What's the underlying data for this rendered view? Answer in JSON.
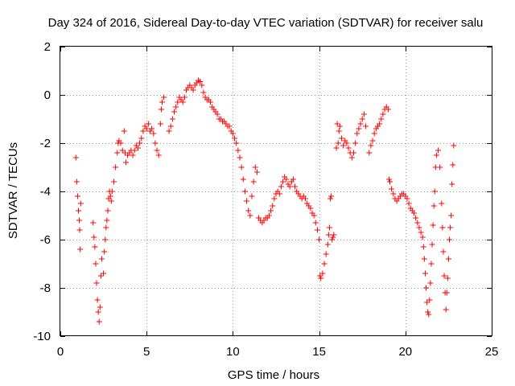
{
  "chart_data": {
    "type": "scatter",
    "title": "Day 324 of 2016, Sidereal Day-to-day VTEC variation (SDTVAR) for receiver salu",
    "xlabel": "GPS time / hours",
    "ylabel": "SDTVAR / TECUs",
    "xlim": [
      0,
      25
    ],
    "ylim": [
      -10,
      2
    ],
    "x_ticks": [
      0,
      5,
      10,
      15,
      20,
      25
    ],
    "y_ticks": [
      -10,
      -8,
      -6,
      -4,
      -2,
      0,
      2
    ],
    "x_tick_labels": [
      "0",
      "5",
      "10",
      "15",
      "20",
      "25"
    ],
    "y_tick_labels": [
      "-10",
      "-8",
      "-6",
      "-4",
      "-2",
      "0",
      "2"
    ],
    "grid": true,
    "marker": "+",
    "color": "#ff0000",
    "series": [
      {
        "name": "SDTVAR",
        "points": [
          [
            0.9,
            -2.6
          ],
          [
            0.95,
            -3.6
          ],
          [
            1.0,
            -4.2
          ],
          [
            1.05,
            -4.8
          ],
          [
            1.1,
            -5.2
          ],
          [
            1.12,
            -5.6
          ],
          [
            1.15,
            -6.4
          ],
          [
            1.18,
            -4.5
          ],
          [
            1.9,
            -5.3
          ],
          [
            1.95,
            -5.9
          ],
          [
            2.0,
            -6.3
          ],
          [
            2.05,
            -7.0
          ],
          [
            2.1,
            -7.8
          ],
          [
            2.15,
            -8.5
          ],
          [
            2.2,
            -9.0
          ],
          [
            2.25,
            -9.4
          ],
          [
            2.3,
            -8.8
          ],
          [
            2.35,
            -7.5
          ],
          [
            2.4,
            -6.8
          ],
          [
            2.5,
            -7.4
          ],
          [
            2.55,
            -6.5
          ],
          [
            2.6,
            -6.0
          ],
          [
            2.65,
            -5.5
          ],
          [
            2.7,
            -5.2
          ],
          [
            2.75,
            -4.8
          ],
          [
            2.8,
            -4.3
          ],
          [
            2.85,
            -4.0
          ],
          [
            2.9,
            -4.2
          ],
          [
            2.95,
            -4.4
          ],
          [
            3.0,
            -4.0
          ],
          [
            3.1,
            -3.6
          ],
          [
            3.2,
            -3.0
          ],
          [
            3.3,
            -2.4
          ],
          [
            3.35,
            -2.0
          ],
          [
            3.4,
            -1.9
          ],
          [
            3.5,
            -2.0
          ],
          [
            3.6,
            -2.3
          ],
          [
            3.7,
            -1.5
          ],
          [
            3.75,
            -2.4
          ],
          [
            3.8,
            -2.8
          ],
          [
            3.9,
            -2.5
          ],
          [
            4.0,
            -2.4
          ],
          [
            4.1,
            -2.3
          ],
          [
            4.2,
            -2.5
          ],
          [
            4.3,
            -2.3
          ],
          [
            4.4,
            -2.1
          ],
          [
            4.5,
            -2.2
          ],
          [
            4.6,
            -2.0
          ],
          [
            4.7,
            -1.8
          ],
          [
            4.8,
            -1.5
          ],
          [
            4.9,
            -1.3
          ],
          [
            5.0,
            -1.4
          ],
          [
            5.1,
            -1.2
          ],
          [
            5.2,
            -1.5
          ],
          [
            5.3,
            -1.4
          ],
          [
            5.4,
            -1.6
          ],
          [
            5.5,
            -2.0
          ],
          [
            5.6,
            -2.3
          ],
          [
            5.7,
            -2.5
          ],
          [
            5.8,
            -1.2
          ],
          [
            5.85,
            -0.6
          ],
          [
            5.9,
            -0.3
          ],
          [
            6.0,
            -0.1
          ],
          [
            6.3,
            -1.5
          ],
          [
            6.4,
            -1.3
          ],
          [
            6.5,
            -1.0
          ],
          [
            6.6,
            -0.7
          ],
          [
            6.7,
            -0.5
          ],
          [
            6.8,
            -0.3
          ],
          [
            6.9,
            -0.1
          ],
          [
            7.0,
            -0.2
          ],
          [
            7.1,
            -0.3
          ],
          [
            7.2,
            -0.1
          ],
          [
            7.3,
            0.2
          ],
          [
            7.4,
            0.3
          ],
          [
            7.5,
            0.4
          ],
          [
            7.6,
            0.3
          ],
          [
            7.7,
            0.2
          ],
          [
            7.8,
            0.4
          ],
          [
            7.9,
            0.5
          ],
          [
            8.0,
            0.6
          ],
          [
            8.1,
            0.55
          ],
          [
            8.2,
            0.4
          ],
          [
            8.3,
            0.1
          ],
          [
            8.4,
            -0.1
          ],
          [
            8.5,
            -0.2
          ],
          [
            8.6,
            -0.2
          ],
          [
            8.7,
            -0.3
          ],
          [
            8.8,
            -0.5
          ],
          [
            8.9,
            -0.6
          ],
          [
            9.0,
            -0.7
          ],
          [
            9.1,
            -0.8
          ],
          [
            9.2,
            -1.0
          ],
          [
            9.3,
            -1.0
          ],
          [
            9.4,
            -1.1
          ],
          [
            9.5,
            -1.1
          ],
          [
            9.6,
            -1.2
          ],
          [
            9.7,
            -1.3
          ],
          [
            9.8,
            -1.3
          ],
          [
            9.9,
            -1.5
          ],
          [
            10.0,
            -1.6
          ],
          [
            10.1,
            -1.8
          ],
          [
            10.2,
            -2.0
          ],
          [
            10.3,
            -2.3
          ],
          [
            10.4,
            -2.6
          ],
          [
            10.5,
            -3.0
          ],
          [
            10.6,
            -3.5
          ],
          [
            10.7,
            -4.0
          ],
          [
            10.8,
            -4.4
          ],
          [
            10.9,
            -4.8
          ],
          [
            11.0,
            -5.0
          ],
          [
            11.1,
            -4.2
          ],
          [
            11.2,
            -3.6
          ],
          [
            11.3,
            -3.0
          ],
          [
            11.4,
            -3.2
          ],
          [
            11.5,
            -5.1
          ],
          [
            11.6,
            -5.2
          ],
          [
            11.7,
            -5.3
          ],
          [
            11.8,
            -5.2
          ],
          [
            11.9,
            -5.1
          ],
          [
            12.0,
            -5.1
          ],
          [
            12.1,
            -5.0
          ],
          [
            12.2,
            -4.8
          ],
          [
            12.3,
            -4.6
          ],
          [
            12.4,
            -4.3
          ],
          [
            12.5,
            -4.1
          ],
          [
            12.6,
            -4.0
          ],
          [
            12.7,
            -4.1
          ],
          [
            12.8,
            -3.8
          ],
          [
            12.9,
            -3.6
          ],
          [
            13.0,
            -3.4
          ],
          [
            13.1,
            -3.5
          ],
          [
            13.2,
            -3.7
          ],
          [
            13.3,
            -3.8
          ],
          [
            13.4,
            -3.6
          ],
          [
            13.5,
            -3.5
          ],
          [
            13.6,
            -3.8
          ],
          [
            13.7,
            -4.0
          ],
          [
            13.8,
            -4.1
          ],
          [
            13.9,
            -4.2
          ],
          [
            14.0,
            -4.3
          ],
          [
            14.1,
            -4.2
          ],
          [
            14.2,
            -4.3
          ],
          [
            14.3,
            -4.5
          ],
          [
            14.4,
            -4.6
          ],
          [
            14.5,
            -4.7
          ],
          [
            14.6,
            -4.9
          ],
          [
            14.7,
            -5.0
          ],
          [
            14.8,
            -5.3
          ],
          [
            14.9,
            -5.6
          ],
          [
            15.0,
            -6.0
          ],
          [
            15.05,
            -7.5
          ],
          [
            15.1,
            -7.6
          ],
          [
            15.2,
            -7.4
          ],
          [
            15.3,
            -7.0
          ],
          [
            15.4,
            -6.6
          ],
          [
            15.5,
            -6.2
          ],
          [
            15.55,
            -5.8
          ],
          [
            15.6,
            -5.5
          ],
          [
            15.65,
            -4.3
          ],
          [
            15.7,
            -4.2
          ],
          [
            15.75,
            -6.0
          ],
          [
            15.8,
            -5.9
          ],
          [
            15.85,
            -5.8
          ],
          [
            16.0,
            -2.2
          ],
          [
            16.05,
            -1.2
          ],
          [
            16.1,
            -2.0
          ],
          [
            16.15,
            -1.5
          ],
          [
            16.2,
            -1.3
          ],
          [
            16.3,
            -1.8
          ],
          [
            16.4,
            -2.1
          ],
          [
            16.5,
            -1.9
          ],
          [
            16.6,
            -2.0
          ],
          [
            16.7,
            -2.2
          ],
          [
            16.8,
            -2.4
          ],
          [
            16.9,
            -2.6
          ],
          [
            17.0,
            -2.4
          ],
          [
            17.1,
            -2.0
          ],
          [
            17.2,
            -1.6
          ],
          [
            17.3,
            -1.4
          ],
          [
            17.4,
            -1.2
          ],
          [
            17.5,
            -1.0
          ],
          [
            17.6,
            -0.8
          ],
          [
            17.7,
            -1.3
          ],
          [
            17.9,
            -2.4
          ],
          [
            18.0,
            -2.1
          ],
          [
            18.1,
            -1.9
          ],
          [
            18.2,
            -1.6
          ],
          [
            18.3,
            -1.4
          ],
          [
            18.4,
            -1.3
          ],
          [
            18.5,
            -1.2
          ],
          [
            18.6,
            -1.0
          ],
          [
            18.7,
            -0.8
          ],
          [
            18.8,
            -0.6
          ],
          [
            18.9,
            -0.5
          ],
          [
            19.0,
            -0.6
          ],
          [
            19.05,
            -3.5
          ],
          [
            19.1,
            -3.6
          ],
          [
            19.2,
            -3.9
          ],
          [
            19.3,
            -4.1
          ],
          [
            19.4,
            -4.3
          ],
          [
            19.5,
            -4.4
          ],
          [
            19.6,
            -4.3
          ],
          [
            19.7,
            -4.2
          ],
          [
            19.8,
            -4.1
          ],
          [
            19.9,
            -4.1
          ],
          [
            20.0,
            -4.2
          ],
          [
            20.1,
            -4.3
          ],
          [
            20.2,
            -4.5
          ],
          [
            20.3,
            -4.7
          ],
          [
            20.4,
            -4.8
          ],
          [
            20.5,
            -4.9
          ],
          [
            20.6,
            -5.1
          ],
          [
            20.7,
            -5.3
          ],
          [
            20.8,
            -5.5
          ],
          [
            20.9,
            -5.7
          ],
          [
            21.0,
            -5.9
          ],
          [
            21.05,
            -6.3
          ],
          [
            21.1,
            -6.8
          ],
          [
            21.15,
            -7.4
          ],
          [
            21.2,
            -8.0
          ],
          [
            21.25,
            -8.6
          ],
          [
            21.3,
            -9.0
          ],
          [
            21.35,
            -9.1
          ],
          [
            21.4,
            -8.5
          ],
          [
            21.45,
            -7.8
          ],
          [
            21.5,
            -7.0
          ],
          [
            21.55,
            -6.2
          ],
          [
            21.6,
            -5.4
          ],
          [
            21.65,
            -4.6
          ],
          [
            21.7,
            -4.0
          ],
          [
            21.75,
            -3.0
          ],
          [
            21.8,
            -2.5
          ],
          [
            21.9,
            -2.3
          ],
          [
            22.0,
            -3.0
          ],
          [
            22.1,
            -4.5
          ],
          [
            22.15,
            -5.5
          ],
          [
            22.2,
            -6.5
          ],
          [
            22.25,
            -7.5
          ],
          [
            22.3,
            -8.2
          ],
          [
            22.35,
            -8.9
          ],
          [
            22.4,
            -8.2
          ],
          [
            22.45,
            -7.6
          ],
          [
            22.5,
            -6.8
          ],
          [
            22.55,
            -6.0
          ],
          [
            22.6,
            -5.5
          ],
          [
            22.65,
            -5.0
          ],
          [
            22.7,
            -3.7
          ],
          [
            22.75,
            -2.9
          ],
          [
            22.8,
            -2.1
          ]
        ]
      }
    ]
  }
}
